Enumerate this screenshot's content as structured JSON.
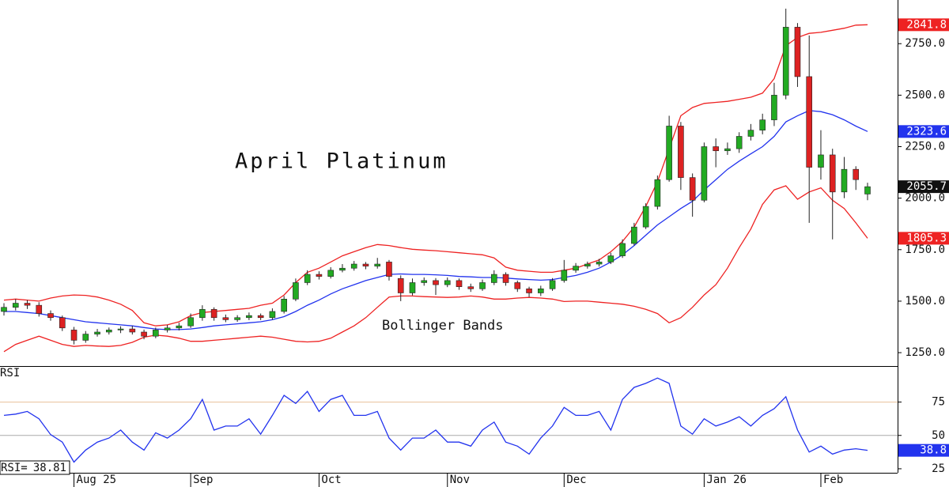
{
  "chart_data": [
    {
      "type": "candlestick",
      "title": "April Platinum",
      "annotation": "Bollinger Bands",
      "up_color": "#22aa22",
      "down_color": "#dd2222",
      "open": [
        1450,
        1470,
        1490,
        1480,
        1440,
        1420,
        1360,
        1310,
        1340,
        1350,
        1360,
        1365,
        1350,
        1330,
        1360,
        1370,
        1380,
        1420,
        1460,
        1420,
        1410,
        1420,
        1430,
        1420,
        1450,
        1510,
        1590,
        1630,
        1620,
        1650,
        1660,
        1680,
        1670,
        1690,
        1610,
        1540,
        1590,
        1600,
        1580,
        1600,
        1570,
        1560,
        1590,
        1630,
        1590,
        1560,
        1540,
        1560,
        1600,
        1650,
        1670,
        1680,
        1690,
        1720,
        1780,
        1860,
        1960,
        2090,
        2350,
        2100,
        1990,
        2250,
        2230,
        2240,
        2300,
        2330,
        2380,
        2500,
        2830,
        2590,
        2150,
        2210,
        2030,
        2140,
        2020
      ],
      "high": [
        1490,
        1510,
        1505,
        1495,
        1455,
        1430,
        1375,
        1355,
        1365,
        1372,
        1378,
        1380,
        1362,
        1372,
        1385,
        1395,
        1440,
        1480,
        1470,
        1435,
        1432,
        1445,
        1440,
        1465,
        1525,
        1610,
        1650,
        1645,
        1665,
        1680,
        1695,
        1690,
        1710,
        1700,
        1625,
        1610,
        1615,
        1612,
        1615,
        1610,
        1585,
        1605,
        1650,
        1640,
        1600,
        1570,
        1575,
        1612,
        1700,
        1685,
        1692,
        1705,
        1735,
        1800,
        1880,
        1975,
        2110,
        2400,
        2370,
        2120,
        2270,
        2290,
        2270,
        2320,
        2360,
        2410,
        2560,
        2920,
        2850,
        2790,
        2330,
        2240,
        2200,
        2155,
        2075
      ],
      "low": [
        1430,
        1455,
        1462,
        1425,
        1405,
        1355,
        1290,
        1298,
        1328,
        1338,
        1345,
        1338,
        1315,
        1320,
        1348,
        1358,
        1370,
        1405,
        1405,
        1398,
        1400,
        1408,
        1408,
        1410,
        1440,
        1500,
        1578,
        1605,
        1610,
        1640,
        1648,
        1655,
        1658,
        1600,
        1500,
        1528,
        1575,
        1530,
        1568,
        1555,
        1545,
        1550,
        1578,
        1575,
        1545,
        1520,
        1525,
        1550,
        1590,
        1638,
        1658,
        1668,
        1680,
        1710,
        1770,
        1850,
        1945,
        2080,
        2040,
        1910,
        1980,
        2150,
        2210,
        2220,
        2280,
        2310,
        2350,
        2480,
        2540,
        1880,
        2090,
        1800,
        2000,
        2040,
        1990
      ],
      "close": [
        1470,
        1490,
        1480,
        1440,
        1420,
        1370,
        1310,
        1340,
        1350,
        1360,
        1365,
        1350,
        1330,
        1360,
        1370,
        1380,
        1420,
        1460,
        1420,
        1410,
        1420,
        1430,
        1420,
        1450,
        1510,
        1590,
        1630,
        1620,
        1650,
        1660,
        1680,
        1670,
        1680,
        1620,
        1540,
        1590,
        1600,
        1580,
        1600,
        1570,
        1560,
        1590,
        1630,
        1590,
        1560,
        1540,
        1560,
        1600,
        1650,
        1670,
        1680,
        1690,
        1720,
        1780,
        1860,
        1960,
        2090,
        2350,
        2100,
        1990,
        2250,
        2230,
        2240,
        2300,
        2330,
        2380,
        2500,
        2830,
        2590,
        2150,
        2210,
        2030,
        2140,
        2090,
        2055.7
      ],
      "bands": [
        {
          "color": "#ee2222",
          "values": [
            1505,
            1510,
            1505,
            1500,
            1515,
            1525,
            1530,
            1528,
            1520,
            1505,
            1485,
            1455,
            1395,
            1380,
            1385,
            1400,
            1430,
            1445,
            1450,
            1455,
            1460,
            1465,
            1480,
            1490,
            1530,
            1590,
            1640,
            1660,
            1690,
            1720,
            1740,
            1760,
            1775,
            1770,
            1760,
            1752,
            1748,
            1745,
            1740,
            1735,
            1730,
            1725,
            1710,
            1665,
            1650,
            1645,
            1640,
            1640,
            1650,
            1660,
            1680,
            1700,
            1740,
            1790,
            1860,
            1960,
            2080,
            2240,
            2400,
            2440,
            2460,
            2465,
            2470,
            2480,
            2490,
            2510,
            2580,
            2740,
            2780,
            2800,
            2805,
            2815,
            2825,
            2840,
            2841.8
          ]
        },
        {
          "color": "#2233ee",
          "values": [
            1450,
            1450,
            1445,
            1440,
            1430,
            1420,
            1410,
            1400,
            1395,
            1390,
            1385,
            1380,
            1372,
            1365,
            1362,
            1362,
            1365,
            1372,
            1380,
            1385,
            1390,
            1395,
            1400,
            1410,
            1425,
            1450,
            1480,
            1505,
            1535,
            1560,
            1580,
            1600,
            1615,
            1630,
            1632,
            1630,
            1630,
            1628,
            1625,
            1620,
            1618,
            1615,
            1615,
            1612,
            1608,
            1605,
            1602,
            1605,
            1615,
            1625,
            1640,
            1660,
            1690,
            1725,
            1770,
            1820,
            1870,
            1910,
            1950,
            1985,
            2040,
            2090,
            2140,
            2180,
            2215,
            2250,
            2300,
            2370,
            2400,
            2425,
            2420,
            2405,
            2380,
            2350,
            2323.6
          ]
        },
        {
          "color": "#ee2222",
          "values": [
            1255,
            1290,
            1310,
            1330,
            1310,
            1290,
            1280,
            1285,
            1282,
            1280,
            1285,
            1300,
            1325,
            1335,
            1330,
            1320,
            1305,
            1305,
            1310,
            1315,
            1320,
            1325,
            1330,
            1325,
            1315,
            1305,
            1302,
            1305,
            1320,
            1350,
            1380,
            1420,
            1470,
            1520,
            1525,
            1525,
            1522,
            1520,
            1518,
            1520,
            1525,
            1520,
            1510,
            1510,
            1515,
            1518,
            1515,
            1510,
            1498,
            1500,
            1500,
            1495,
            1490,
            1485,
            1475,
            1460,
            1440,
            1395,
            1420,
            1470,
            1530,
            1580,
            1660,
            1760,
            1850,
            1970,
            2040,
            2060,
            1995,
            2030,
            2050,
            1990,
            1950,
            1880,
            1805.3
          ]
        }
      ],
      "ylim": [
        1185,
        2962
      ],
      "yticks": [
        {
          "value": 1250,
          "label": "1250.0"
        },
        {
          "value": 1500,
          "label": "1500.0"
        },
        {
          "value": 1750,
          "label": "1750.0"
        },
        {
          "value": 2000,
          "label": "2000.0"
        },
        {
          "value": 2250,
          "label": "2250.0"
        },
        {
          "value": 2500,
          "label": "2500.0"
        },
        {
          "value": 2750,
          "label": "2750.0"
        }
      ],
      "tags": [
        {
          "value": 2841.8,
          "color": "#ee2222"
        },
        {
          "value": 2323.6,
          "color": "#2233ee"
        },
        {
          "value": 2055.7,
          "color": "#111111"
        },
        {
          "value": 1805.3,
          "color": "#ee2222"
        }
      ]
    },
    {
      "type": "line",
      "title": "RSI",
      "color": "#2233ee",
      "values": [
        65,
        66,
        68,
        62.5,
        50.6,
        45,
        30,
        39,
        45,
        48,
        54,
        45,
        39,
        52,
        48,
        54,
        62.5,
        77,
        54,
        57,
        57,
        62.5,
        51,
        65,
        80,
        74,
        83,
        68,
        77,
        80,
        65,
        65,
        68,
        48,
        39,
        48,
        48,
        54,
        45,
        45,
        42,
        54,
        60,
        45,
        42,
        36,
        48,
        57,
        71,
        65,
        65,
        68,
        54,
        77,
        86,
        89,
        93,
        89,
        57,
        51,
        62.5,
        57,
        60,
        64,
        57,
        65,
        70,
        79,
        54,
        37.5,
        42,
        36,
        39,
        40,
        38.8
      ],
      "ylim": [
        22,
        102
      ],
      "yticks": [
        25,
        50,
        75
      ],
      "reference_lines": [
        {
          "value": 75,
          "color": "#e8c09a"
        },
        {
          "value": 50,
          "color": "#aaaaaa"
        }
      ],
      "readout_label": "RSI=",
      "readout": 38.81,
      "tags": [
        {
          "value": 38.8,
          "color": "#2233ee"
        }
      ],
      "xticks": [
        {
          "value": 6,
          "label": "Aug 25"
        },
        {
          "value": 16,
          "label": "Sep"
        },
        {
          "value": 27,
          "label": "Oct"
        },
        {
          "value": 38,
          "label": "Nov"
        },
        {
          "value": 48,
          "label": "Dec"
        },
        {
          "value": 60,
          "label": "Jan 26"
        },
        {
          "value": 70,
          "label": "Feb"
        }
      ]
    }
  ]
}
